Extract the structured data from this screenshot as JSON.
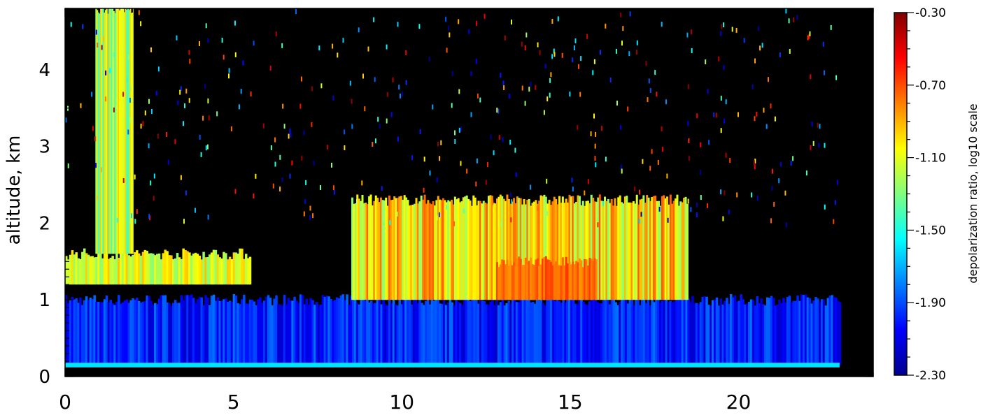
{
  "chart_data": {
    "type": "heatmap",
    "title": "",
    "xlabel": "",
    "ylabel": "altitude, km",
    "xlim": [
      0,
      24
    ],
    "ylim": [
      0,
      4.8
    ],
    "x_ticks": [
      "0",
      "5",
      "10",
      "15",
      "20"
    ],
    "y_ticks": [
      "0",
      "1",
      "2",
      "3",
      "4"
    ],
    "colorbar": {
      "label": "depolarization ratio, log10 scale",
      "scale": "log10",
      "range": [
        -2.3,
        -0.3
      ],
      "tick_labels": [
        "-0.30",
        "-0.70",
        "-1.10",
        "-1.50",
        "-1.90",
        "-2.30"
      ],
      "colormap": [
        "#00008f",
        "#0000ff",
        "#007fff",
        "#00ffff",
        "#7fff7f",
        "#ffff00",
        "#ff7f00",
        "#ff0000",
        "#7f0000"
      ]
    },
    "background_color": "#000000",
    "data_extent_x": [
      0,
      23
    ],
    "features": {
      "boundary_layer": {
        "x": [
          0,
          23
        ],
        "y": [
          0.15,
          1.0
        ],
        "log10_depol": -2.0
      },
      "surface_noise_line": {
        "y": 0.15,
        "log10_depol": -1.6
      },
      "aerosol_layer_morning": {
        "x": [
          0,
          5.5
        ],
        "y": [
          1.2,
          1.6
        ],
        "log10_depol": -1.1
      },
      "precipitation_column": {
        "x": [
          0.9,
          2.0
        ],
        "y": [
          1.6,
          4.8
        ],
        "log10_depol": -1.2
      },
      "lofted_layer": {
        "x": [
          8.5,
          18.5
        ],
        "y": [
          1.0,
          2.3
        ],
        "log10_depol": -1.0
      },
      "dust_core": {
        "x": [
          12.8,
          15.8
        ],
        "y": [
          1.0,
          1.5
        ],
        "log10_depol": -0.75
      }
    }
  }
}
